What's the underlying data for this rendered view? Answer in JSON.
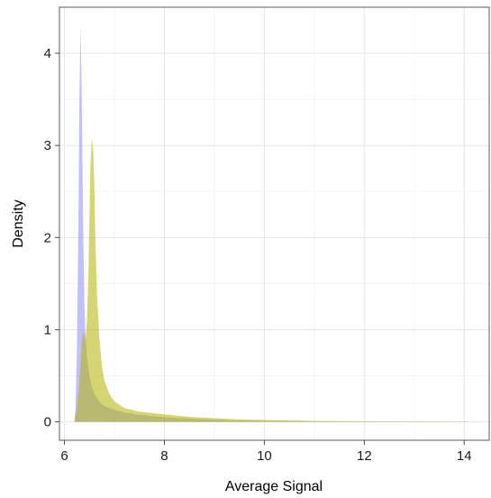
{
  "chart_data": {
    "type": "area",
    "title": "",
    "xlabel": "Average Signal",
    "ylabel": "Density",
    "xlim": [
      5.9,
      14.5
    ],
    "ylim": [
      -0.2,
      4.5
    ],
    "xticks": [
      6,
      8,
      10,
      12,
      14
    ],
    "xtick_labels": [
      "6",
      "8",
      "10",
      "12",
      "14"
    ],
    "yticks": [
      0,
      1,
      2,
      3,
      4
    ],
    "ytick_labels": [
      "0",
      "1",
      "2",
      "3",
      "4"
    ],
    "grid": true,
    "legend": "none",
    "series": [
      {
        "color": "#9999ff",
        "opacity": 0.62,
        "x": [
          6.2,
          6.22,
          6.25,
          6.28,
          6.3,
          6.32,
          6.34,
          6.36,
          6.38,
          6.4,
          6.42,
          6.45,
          6.5,
          6.55,
          6.6,
          6.7,
          6.8,
          7.0,
          7.2,
          7.5,
          8.0,
          8.5,
          9.0,
          9.5,
          10.0,
          11.0,
          12.0,
          13.0,
          14.0,
          14.2
        ],
        "y": [
          0.0,
          0.15,
          0.8,
          2.2,
          3.5,
          4.3,
          3.8,
          2.8,
          1.9,
          1.3,
          0.95,
          0.7,
          0.5,
          0.38,
          0.3,
          0.22,
          0.17,
          0.13,
          0.1,
          0.075,
          0.05,
          0.035,
          0.022,
          0.015,
          0.01,
          0.005,
          0.003,
          0.002,
          0.001,
          0.0
        ]
      },
      {
        "color": "#b3b300",
        "opacity": 0.55,
        "x": [
          6.2,
          6.25,
          6.3,
          6.35,
          6.38,
          6.42,
          6.45,
          6.48,
          6.5,
          6.52,
          6.55,
          6.58,
          6.6,
          6.62,
          6.65,
          6.7,
          6.75,
          6.8,
          6.9,
          7.0,
          7.2,
          7.5,
          8.0,
          8.5,
          9.0,
          9.5,
          10.0,
          11.0,
          12.0,
          13.0,
          14.0,
          14.2
        ],
        "y": [
          0.0,
          0.15,
          0.45,
          0.9,
          0.98,
          0.88,
          1.1,
          1.6,
          2.2,
          2.8,
          3.08,
          2.9,
          2.5,
          1.95,
          1.4,
          0.9,
          0.6,
          0.45,
          0.3,
          0.22,
          0.15,
          0.11,
          0.08,
          0.055,
          0.04,
          0.028,
          0.02,
          0.01,
          0.005,
          0.003,
          0.002,
          0.0
        ]
      }
    ]
  }
}
